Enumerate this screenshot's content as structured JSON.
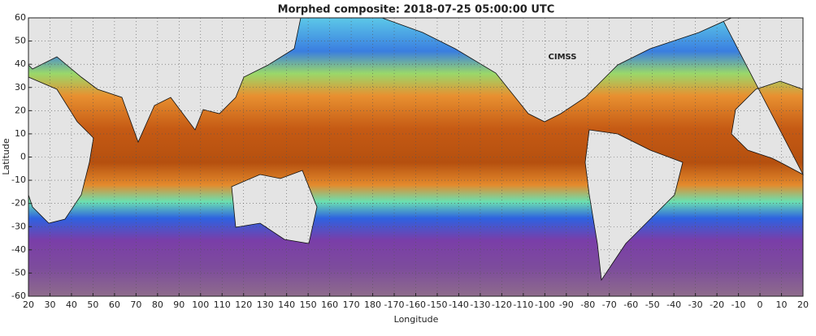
{
  "chart_data": {
    "type": "map",
    "title": "Morphed composite: 2018-07-25 05:00:00 UTC",
    "xlabel": "Longitude",
    "ylabel": "Latitude",
    "logo": "CIMSS",
    "xlim": [
      20,
      380
    ],
    "ylim": [
      -60,
      60
    ],
    "xticks": [
      20,
      30,
      40,
      50,
      60,
      70,
      80,
      90,
      100,
      110,
      120,
      130,
      140,
      150,
      160,
      170,
      180,
      {
        "value": 190,
        "label": "-170"
      },
      {
        "value": 200,
        "label": "-160"
      },
      {
        "value": 210,
        "label": "-150"
      },
      {
        "value": 220,
        "label": "-140"
      },
      {
        "value": 230,
        "label": "-130"
      },
      {
        "value": 240,
        "label": "-120"
      },
      {
        "value": 250,
        "label": "-110"
      },
      {
        "value": 260,
        "label": "-100"
      },
      {
        "value": 270,
        "label": "-90"
      },
      {
        "value": 280,
        "label": "-80"
      },
      {
        "value": 290,
        "label": "-70"
      },
      {
        "value": 300,
        "label": "-60"
      },
      {
        "value": 310,
        "label": "-50"
      },
      {
        "value": 320,
        "label": "-40"
      },
      {
        "value": 330,
        "label": "-30"
      },
      {
        "value": 340,
        "label": "-20"
      },
      {
        "value": 350,
        "label": "-10"
      },
      {
        "value": 360,
        "label": "0"
      },
      {
        "value": 370,
        "label": "10"
      },
      {
        "value": 380,
        "label": "20"
      }
    ],
    "yticks": [
      60,
      50,
      40,
      30,
      20,
      10,
      0,
      -10,
      -20,
      -30,
      -40,
      -50,
      -60
    ],
    "grid": true
  }
}
